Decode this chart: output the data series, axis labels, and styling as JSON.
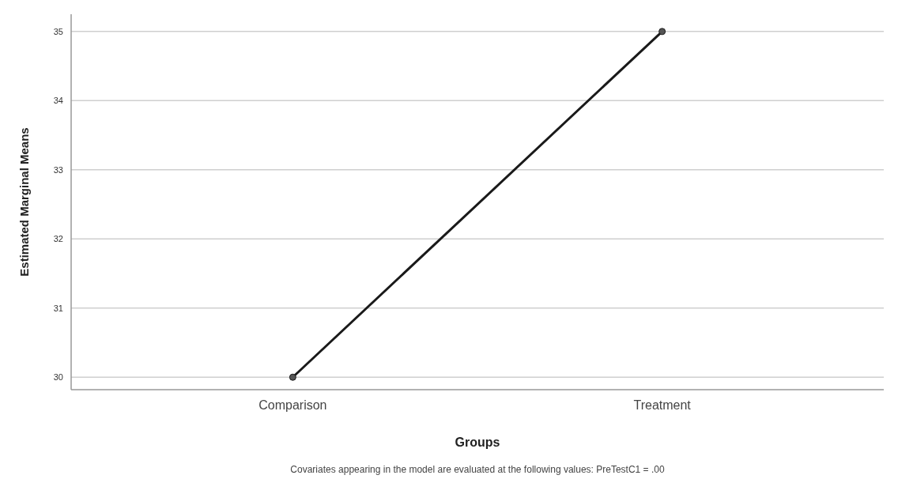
{
  "chart_data": {
    "type": "line",
    "xlabel": "Groups",
    "ylabel": "Estimated Marginal Means",
    "categories": [
      "Comparison",
      "Treatment"
    ],
    "series": [
      {
        "color": "#1a1a1a",
        "values": [
          30.0,
          35.0
        ]
      }
    ],
    "ylim": [
      29.82,
      35.25
    ],
    "yticks": [
      30,
      31,
      32,
      33,
      34,
      35
    ],
    "grid": "y",
    "marker": "circle",
    "line_style": "solid",
    "annotations": [
      "Covariates appearing in the model are evaluated at the following values: PreTestC1 = .00"
    ]
  }
}
